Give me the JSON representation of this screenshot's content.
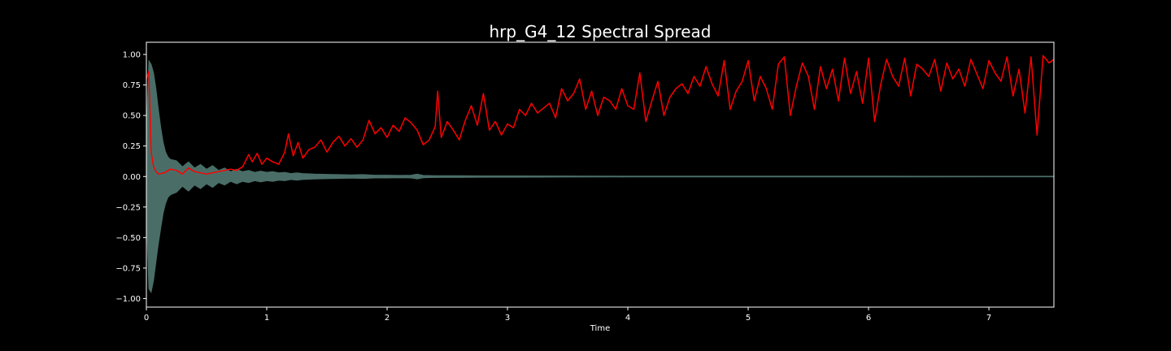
{
  "chart_data": {
    "type": "area",
    "title": "hrp_G4_12 Spectral Spread",
    "xlabel": "Time",
    "ylabel": "",
    "xlim": [
      0,
      7.54
    ],
    "ylim": [
      -1.07,
      1.1
    ],
    "x_ticks": [
      0,
      1,
      2,
      3,
      4,
      5,
      6,
      7
    ],
    "x_tick_labels": [
      "0",
      "1",
      "2",
      "3",
      "4",
      "5",
      "6",
      "7"
    ],
    "y_ticks": [
      1.0,
      0.75,
      0.5,
      0.25,
      0.0,
      -0.25,
      -0.5,
      -0.75,
      -1.0
    ],
    "y_tick_labels": [
      "1.00",
      "0.75",
      "0.50",
      "0.25",
      "0.00",
      "−0.25",
      "−0.50",
      "−0.75",
      "−1.00"
    ],
    "grid": false,
    "legend": "none",
    "colors": {
      "background": "#000000",
      "axes": "#ffffff",
      "text": "#ffffff",
      "waveform": "#4a6e67",
      "spread": "#ff0000"
    },
    "series": [
      {
        "kind": "waveform-envelope",
        "x": [
          0,
          0.02,
          0.04,
          0.06,
          0.08,
          0.1,
          0.12,
          0.14,
          0.16,
          0.18,
          0.2,
          0.25,
          0.3,
          0.35,
          0.4,
          0.45,
          0.5,
          0.55,
          0.6,
          0.65,
          0.7,
          0.75,
          0.8,
          0.85,
          0.9,
          0.95,
          1.0,
          1.05,
          1.1,
          1.15,
          1.2,
          1.25,
          1.3,
          1.4,
          1.5,
          1.6,
          1.7,
          1.8,
          1.9,
          2.0,
          2.1,
          2.2,
          2.25,
          2.3,
          2.4,
          2.6,
          2.8,
          3.0,
          3.5,
          4.0,
          5.0,
          6.0,
          7.0,
          7.54
        ],
        "upper": [
          0.35,
          0.95,
          0.92,
          0.85,
          0.72,
          0.55,
          0.4,
          0.28,
          0.2,
          0.16,
          0.14,
          0.13,
          0.08,
          0.12,
          0.07,
          0.1,
          0.06,
          0.09,
          0.05,
          0.07,
          0.04,
          0.06,
          0.04,
          0.05,
          0.035,
          0.045,
          0.035,
          0.04,
          0.03,
          0.035,
          0.025,
          0.03,
          0.025,
          0.02,
          0.018,
          0.016,
          0.014,
          0.016,
          0.012,
          0.012,
          0.01,
          0.012,
          0.02,
          0.01,
          0.008,
          0.008,
          0.006,
          0.006,
          0.005,
          0.004,
          0.004,
          0.004,
          0.003,
          0.003
        ],
        "lower": [
          -0.3,
          -0.92,
          -0.95,
          -0.85,
          -0.7,
          -0.55,
          -0.42,
          -0.3,
          -0.22,
          -0.17,
          -0.15,
          -0.13,
          -0.08,
          -0.12,
          -0.07,
          -0.1,
          -0.06,
          -0.09,
          -0.05,
          -0.07,
          -0.04,
          -0.06,
          -0.04,
          -0.05,
          -0.035,
          -0.045,
          -0.035,
          -0.04,
          -0.03,
          -0.035,
          -0.025,
          -0.03,
          -0.025,
          -0.02,
          -0.018,
          -0.016,
          -0.014,
          -0.016,
          -0.012,
          -0.012,
          -0.01,
          -0.012,
          -0.02,
          -0.01,
          -0.008,
          -0.008,
          -0.006,
          -0.006,
          -0.005,
          -0.004,
          -0.004,
          -0.004,
          -0.003,
          -0.003
        ]
      },
      {
        "kind": "spectral-spread",
        "x": [
          0.0,
          0.02,
          0.04,
          0.06,
          0.08,
          0.1,
          0.15,
          0.2,
          0.25,
          0.3,
          0.35,
          0.4,
          0.45,
          0.5,
          0.55,
          0.6,
          0.65,
          0.7,
          0.75,
          0.8,
          0.85,
          0.88,
          0.92,
          0.96,
          1.0,
          1.05,
          1.1,
          1.15,
          1.18,
          1.22,
          1.26,
          1.3,
          1.35,
          1.4,
          1.45,
          1.5,
          1.55,
          1.6,
          1.65,
          1.7,
          1.75,
          1.8,
          1.85,
          1.9,
          1.95,
          2.0,
          2.05,
          2.1,
          2.15,
          2.2,
          2.25,
          2.3,
          2.35,
          2.4,
          2.42,
          2.45,
          2.5,
          2.55,
          2.6,
          2.65,
          2.7,
          2.75,
          2.8,
          2.85,
          2.9,
          2.95,
          3.0,
          3.05,
          3.1,
          3.15,
          3.2,
          3.25,
          3.3,
          3.35,
          3.4,
          3.45,
          3.5,
          3.55,
          3.6,
          3.65,
          3.7,
          3.75,
          3.8,
          3.85,
          3.9,
          3.95,
          4.0,
          4.05,
          4.1,
          4.15,
          4.2,
          4.25,
          4.3,
          4.35,
          4.4,
          4.45,
          4.5,
          4.55,
          4.6,
          4.65,
          4.7,
          4.75,
          4.8,
          4.85,
          4.9,
          4.95,
          5.0,
          5.05,
          5.1,
          5.15,
          5.2,
          5.25,
          5.3,
          5.35,
          5.4,
          5.45,
          5.5,
          5.55,
          5.6,
          5.65,
          5.7,
          5.75,
          5.8,
          5.85,
          5.9,
          5.95,
          6.0,
          6.05,
          6.1,
          6.15,
          6.2,
          6.25,
          6.3,
          6.35,
          6.4,
          6.45,
          6.5,
          6.55,
          6.6,
          6.65,
          6.7,
          6.75,
          6.8,
          6.85,
          6.9,
          6.95,
          7.0,
          7.05,
          7.1,
          7.15,
          7.2,
          7.25,
          7.3,
          7.35,
          7.4,
          7.45,
          7.5,
          7.54
        ],
        "values": [
          0.8,
          0.86,
          0.2,
          0.08,
          0.04,
          0.02,
          0.03,
          0.06,
          0.05,
          0.02,
          0.07,
          0.04,
          0.03,
          0.02,
          0.03,
          0.04,
          0.05,
          0.06,
          0.05,
          0.08,
          0.18,
          0.12,
          0.19,
          0.1,
          0.15,
          0.12,
          0.1,
          0.2,
          0.35,
          0.17,
          0.28,
          0.15,
          0.22,
          0.24,
          0.3,
          0.2,
          0.28,
          0.33,
          0.25,
          0.31,
          0.24,
          0.3,
          0.46,
          0.35,
          0.4,
          0.32,
          0.42,
          0.37,
          0.48,
          0.44,
          0.38,
          0.26,
          0.3,
          0.41,
          0.7,
          0.32,
          0.45,
          0.38,
          0.3,
          0.46,
          0.58,
          0.42,
          0.68,
          0.38,
          0.45,
          0.34,
          0.43,
          0.4,
          0.55,
          0.5,
          0.6,
          0.52,
          0.56,
          0.6,
          0.48,
          0.72,
          0.62,
          0.68,
          0.8,
          0.55,
          0.7,
          0.5,
          0.65,
          0.62,
          0.55,
          0.72,
          0.58,
          0.55,
          0.85,
          0.45,
          0.62,
          0.78,
          0.5,
          0.65,
          0.72,
          0.76,
          0.68,
          0.82,
          0.74,
          0.9,
          0.76,
          0.66,
          0.95,
          0.55,
          0.7,
          0.78,
          0.95,
          0.62,
          0.82,
          0.72,
          0.55,
          0.92,
          0.98,
          0.5,
          0.74,
          0.93,
          0.82,
          0.55,
          0.9,
          0.72,
          0.88,
          0.62,
          0.97,
          0.68,
          0.86,
          0.6,
          0.97,
          0.45,
          0.75,
          0.96,
          0.82,
          0.74,
          0.97,
          0.66,
          0.92,
          0.88,
          0.82,
          0.96,
          0.7,
          0.93,
          0.8,
          0.88,
          0.74,
          0.96,
          0.84,
          0.72,
          0.95,
          0.85,
          0.78,
          0.98,
          0.66,
          0.88,
          0.52,
          0.98,
          0.34,
          0.99,
          0.93,
          0.96
        ]
      }
    ]
  }
}
